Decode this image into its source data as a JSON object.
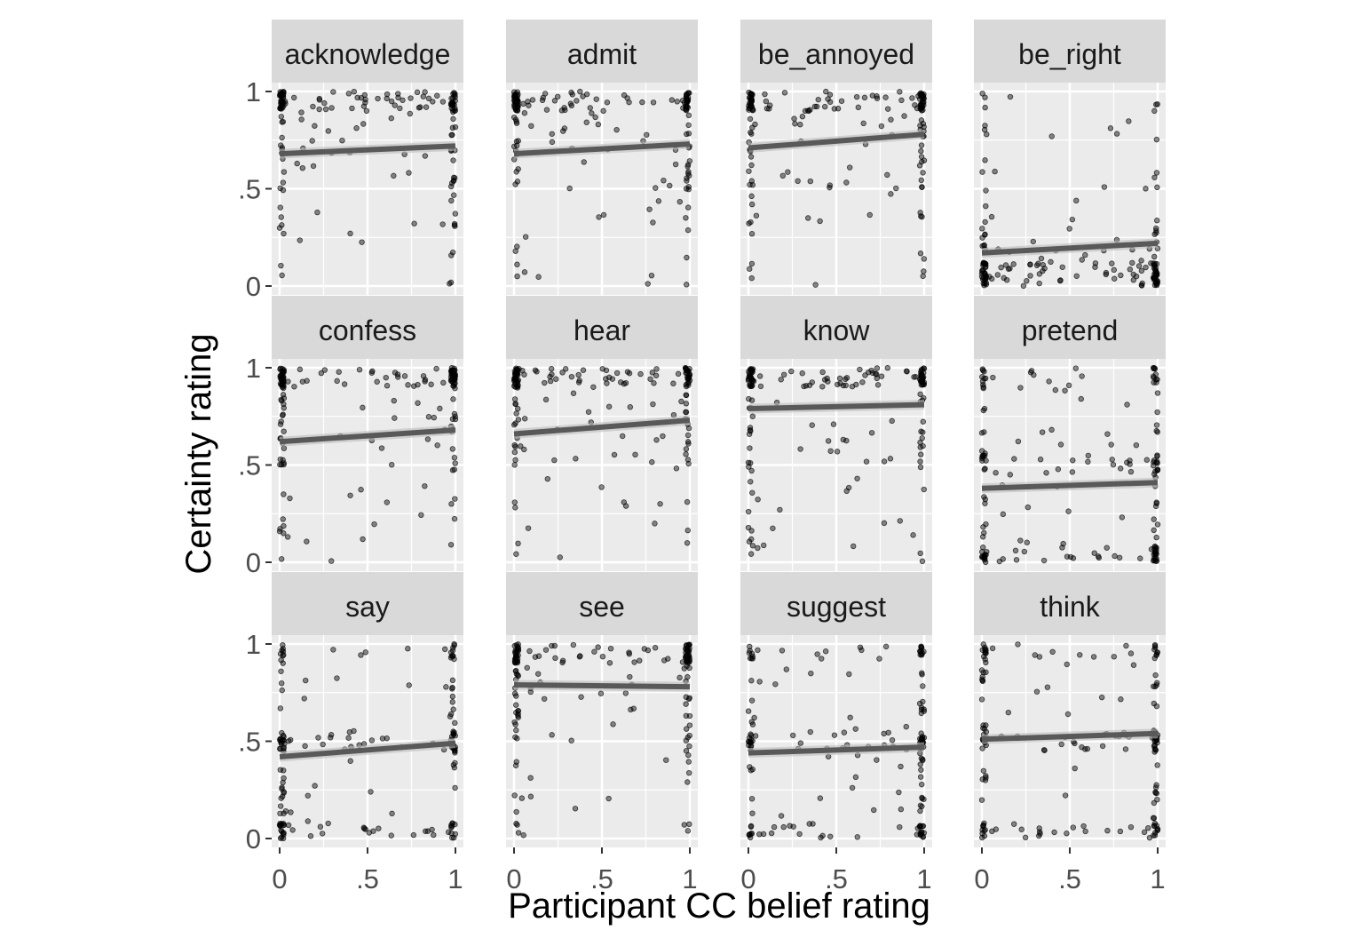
{
  "chart_data": {
    "type": "scatter",
    "xlabel": "Participant CC belief rating",
    "ylabel": "Certainty rating",
    "xlim": [
      0,
      1
    ],
    "ylim": [
      0,
      1
    ],
    "x_ticks": [
      "0",
      ".5",
      "1"
    ],
    "y_ticks": [
      "0",
      ".5",
      "1"
    ],
    "grid": true,
    "panels": [
      {
        "name": "acknowledge",
        "fit": {
          "y0": 0.68,
          "y1": 0.72
        }
      },
      {
        "name": "admit",
        "fit": {
          "y0": 0.68,
          "y1": 0.73
        }
      },
      {
        "name": "be_annoyed",
        "fit": {
          "y0": 0.71,
          "y1": 0.78
        }
      },
      {
        "name": "be_right",
        "fit": {
          "y0": 0.17,
          "y1": 0.22
        }
      },
      {
        "name": "confess",
        "fit": {
          "y0": 0.62,
          "y1": 0.68
        }
      },
      {
        "name": "hear",
        "fit": {
          "y0": 0.66,
          "y1": 0.73
        }
      },
      {
        "name": "know",
        "fit": {
          "y0": 0.79,
          "y1": 0.81
        }
      },
      {
        "name": "pretend",
        "fit": {
          "y0": 0.38,
          "y1": 0.41
        }
      },
      {
        "name": "say",
        "fit": {
          "y0": 0.42,
          "y1": 0.49
        }
      },
      {
        "name": "see",
        "fit": {
          "y0": 0.79,
          "y1": 0.78
        }
      },
      {
        "name": "suggest",
        "fit": {
          "y0": 0.44,
          "y1": 0.47
        }
      },
      {
        "name": "think",
        "fit": {
          "y0": 0.51,
          "y1": 0.54
        }
      }
    ],
    "point_opacity": 0.45
  },
  "colors": {
    "panel_bg": "#ebebeb",
    "strip_bg": "#d9d9d9",
    "grid": "#ffffff",
    "points": "#000000",
    "fit_line": "#595959",
    "fit_band": "#bdbdbd"
  }
}
